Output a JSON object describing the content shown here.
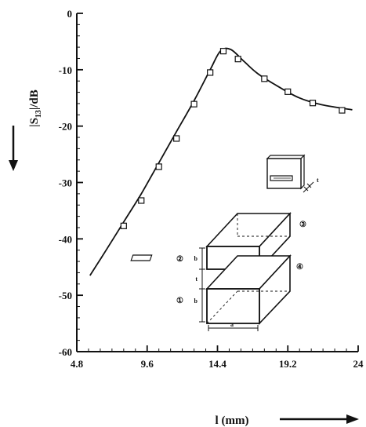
{
  "chart_data": {
    "type": "line",
    "title": "",
    "xlabel": "l (mm)",
    "ylabel": "|S13|/dB",
    "ylabel_main": "|S",
    "ylabel_sub": "13",
    "ylabel_tail": "|/dB",
    "xlim": [
      4.8,
      24
    ],
    "ylim": [
      -60,
      0
    ],
    "xticks": [
      4.8,
      9.6,
      14.4,
      19.2,
      24
    ],
    "xtick_labels": [
      "4.8",
      "9.6",
      "14.4",
      "19.2",
      "24"
    ],
    "yticks": [
      0,
      -10,
      -20,
      -30,
      -40,
      -50,
      -60
    ],
    "ytick_labels": [
      "0",
      "-10",
      "-20",
      "-30",
      "-40",
      "-50",
      "-60"
    ],
    "grid": false,
    "series": [
      {
        "style": "solid-line",
        "x": [
          5.7,
          6.8,
          8.0,
          9.2,
          10.4,
          11.6,
          12.8,
          13.9,
          14.6,
          15.3,
          16.2,
          17.1,
          18.3,
          19.9,
          21.5,
          23.6
        ],
        "y": [
          -46.5,
          -42.0,
          -37.0,
          -32.0,
          -26.5,
          -21.0,
          -15.5,
          -10.0,
          -6.7,
          -6.4,
          -8.5,
          -10.6,
          -12.6,
          -14.9,
          -16.2,
          -17.1
        ]
      },
      {
        "style": "square-markers",
        "x": [
          8.0,
          9.2,
          10.4,
          11.6,
          12.8,
          13.9,
          14.8,
          15.8,
          17.6,
          19.2,
          20.9,
          22.9
        ],
        "y": [
          -37.7,
          -33.2,
          -27.2,
          -22.2,
          -16.1,
          -10.5,
          -6.7,
          -8.1,
          -11.6,
          -13.9,
          -15.9,
          -17.2
        ]
      }
    ],
    "inset": {
      "port_labels": [
        "③",
        "④",
        "②",
        "①"
      ],
      "dimension_labels": [
        "b",
        "t",
        "b",
        "a"
      ],
      "plate_dimension_label": "t"
    }
  }
}
